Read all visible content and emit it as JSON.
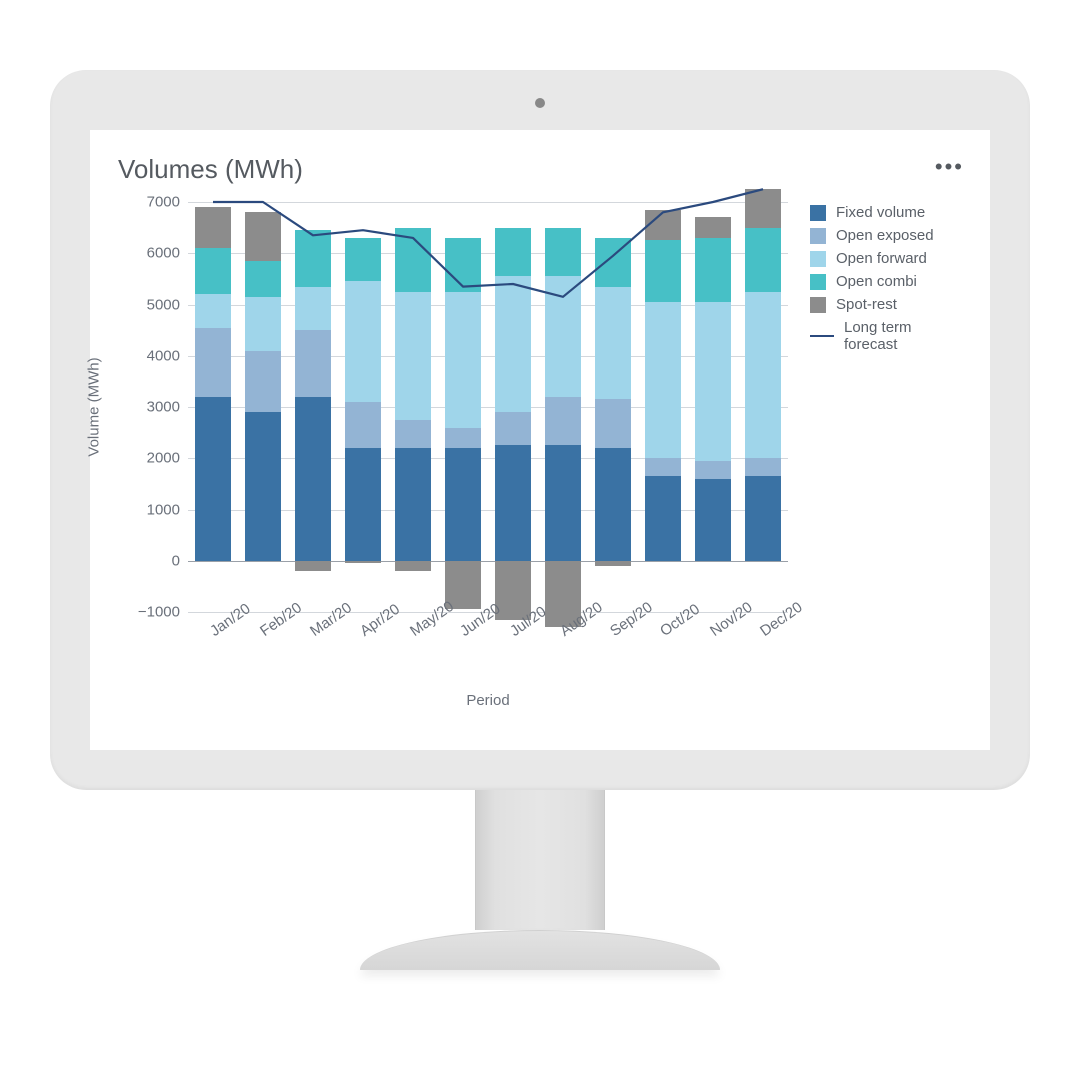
{
  "chart": {
    "title": "Volumes (MWh)",
    "more_label": "•••",
    "type": "stacked-bar-with-line",
    "x_label": "Period",
    "y_label": "Volume (MWh)",
    "background_color": "#ffffff",
    "grid_color": "#d3d7dc",
    "axis_text_color": "#6a707a",
    "title_fontsize": 26,
    "label_fontsize": 15,
    "tick_fontsize": 15,
    "ylim": [
      -1000,
      7000
    ],
    "ytick_step": 1000,
    "yticks": [
      -1000,
      0,
      1000,
      2000,
      3000,
      4000,
      5000,
      6000,
      7000
    ],
    "bar_width": 0.72,
    "categories": [
      "Jan/20",
      "Feb/20",
      "Mar/20",
      "Apr/20",
      "May/20",
      "Jun/20",
      "Jul/20",
      "Aug/20",
      "Sep/20",
      "Oct/20",
      "Nov/20",
      "Dec/20"
    ],
    "series": [
      {
        "key": "fixed_volume",
        "label": "Fixed volume",
        "color": "#3a72a4"
      },
      {
        "key": "open_exposed",
        "label": "Open exposed",
        "color": "#93b4d4"
      },
      {
        "key": "open_forward",
        "label": "Open forward",
        "color": "#9fd5ea"
      },
      {
        "key": "open_combi",
        "label": "Open combi",
        "color": "#47c0c6"
      },
      {
        "key": "spot_rest",
        "label": "Spot-rest",
        "color": "#8c8c8c"
      }
    ],
    "line_series": {
      "key": "long_term_forecast",
      "label": "Long term forecast",
      "color": "#2b4a7e",
      "line_width": 2.2,
      "values": [
        7000,
        7000,
        6350,
        6450,
        6300,
        5350,
        5400,
        5150,
        5950,
        6800,
        7000,
        7250
      ]
    },
    "data": {
      "fixed_volume": [
        3200,
        2900,
        3200,
        2200,
        2200,
        2200,
        2250,
        2250,
        2200,
        1650,
        1600,
        1650
      ],
      "open_exposed": [
        1350,
        1200,
        1300,
        900,
        550,
        400,
        650,
        950,
        950,
        350,
        350,
        350
      ],
      "open_forward": [
        650,
        1050,
        850,
        2350,
        2500,
        2650,
        2650,
        2350,
        2200,
        3050,
        3100,
        3250
      ],
      "open_combi": [
        900,
        700,
        1100,
        850,
        1250,
        1050,
        950,
        950,
        950,
        1200,
        1250,
        1250
      ],
      "spot_rest_pos": [
        800,
        950,
        0,
        0,
        0,
        0,
        0,
        0,
        0,
        600,
        400,
        750
      ],
      "spot_rest_neg": [
        0,
        0,
        -200,
        -50,
        -200,
        -950,
        -1150,
        -1300,
        -100,
        0,
        0,
        0
      ]
    }
  },
  "monitor": {
    "bezel_color": "#e8e8e8",
    "camera_color": "#888888"
  }
}
